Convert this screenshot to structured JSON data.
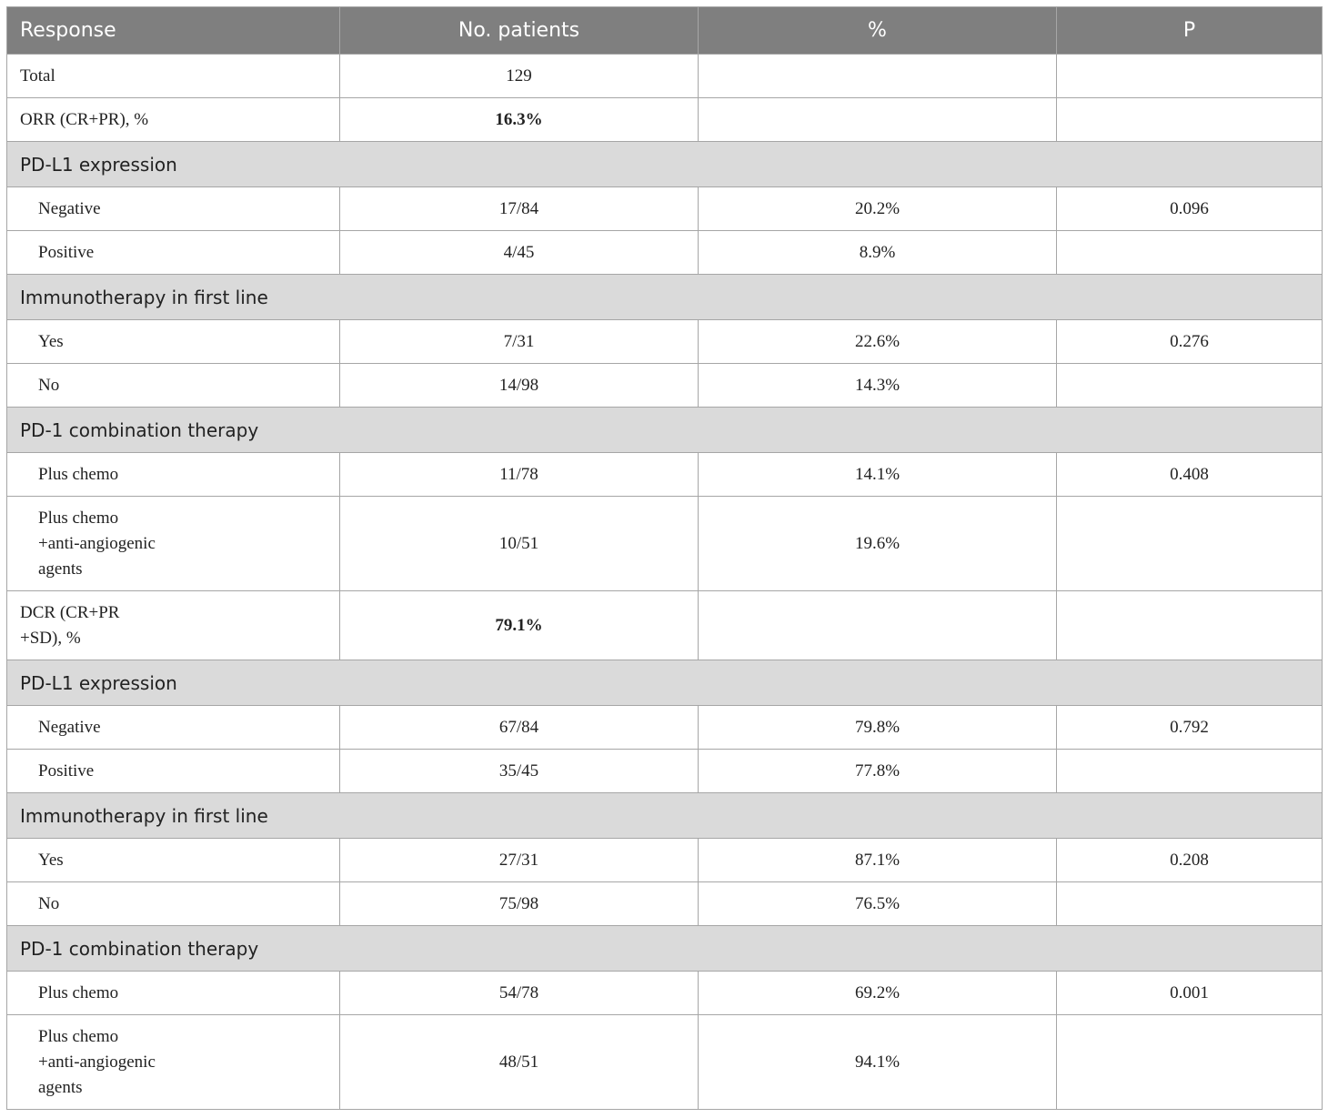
{
  "table": {
    "headers": [
      "Response",
      "No. patients",
      "%",
      "P"
    ],
    "total": {
      "label": "Total",
      "patients": "129",
      "pct": "",
      "p": ""
    },
    "orr": {
      "label": "ORR (CR+PR), %",
      "patients": "16.3%",
      "pct": "",
      "p": ""
    },
    "orr_groups": [
      {
        "title": "PD-L1 expression",
        "rows": [
          {
            "label": "Negative",
            "patients": "17/84",
            "pct": "20.2%",
            "p": "0.096"
          },
          {
            "label": "Positive",
            "patients": "4/45",
            "pct": "8.9%",
            "p": ""
          }
        ]
      },
      {
        "title": "Immunotherapy in first line",
        "rows": [
          {
            "label": "Yes",
            "patients": "7/31",
            "pct": "22.6%",
            "p": "0.276"
          },
          {
            "label": "No",
            "patients": "14/98",
            "pct": "14.3%",
            "p": ""
          }
        ]
      },
      {
        "title": "PD-1 combination therapy",
        "rows": [
          {
            "label": "Plus chemo",
            "patients": "11/78",
            "pct": "14.1%",
            "p": "0.408"
          },
          {
            "label": "Plus chemo +anti-angiogenic agents",
            "patients": "10/51",
            "pct": "19.6%",
            "p": ""
          }
        ]
      }
    ],
    "dcr": {
      "label": "DCR (CR+PR +SD), %",
      "patients": "79.1%",
      "pct": "",
      "p": ""
    },
    "dcr_groups": [
      {
        "title": "PD-L1 expression",
        "rows": [
          {
            "label": "Negative",
            "patients": "67/84",
            "pct": "79.8%",
            "p": "0.792"
          },
          {
            "label": "Positive",
            "patients": "35/45",
            "pct": "77.8%",
            "p": ""
          }
        ]
      },
      {
        "title": "Immunotherapy in first line",
        "rows": [
          {
            "label": "Yes",
            "patients": "27/31",
            "pct": "87.1%",
            "p": "0.208"
          },
          {
            "label": "No",
            "patients": "75/98",
            "pct": "76.5%",
            "p": ""
          }
        ]
      },
      {
        "title": "PD-1 combination therapy",
        "rows": [
          {
            "label": "Plus chemo",
            "patients": "54/78",
            "pct": "69.2%",
            "p": "0.001"
          },
          {
            "label": "Plus chemo +anti-angiogenic agents",
            "patients": "48/51",
            "pct": "94.1%",
            "p": ""
          }
        ]
      }
    ]
  }
}
